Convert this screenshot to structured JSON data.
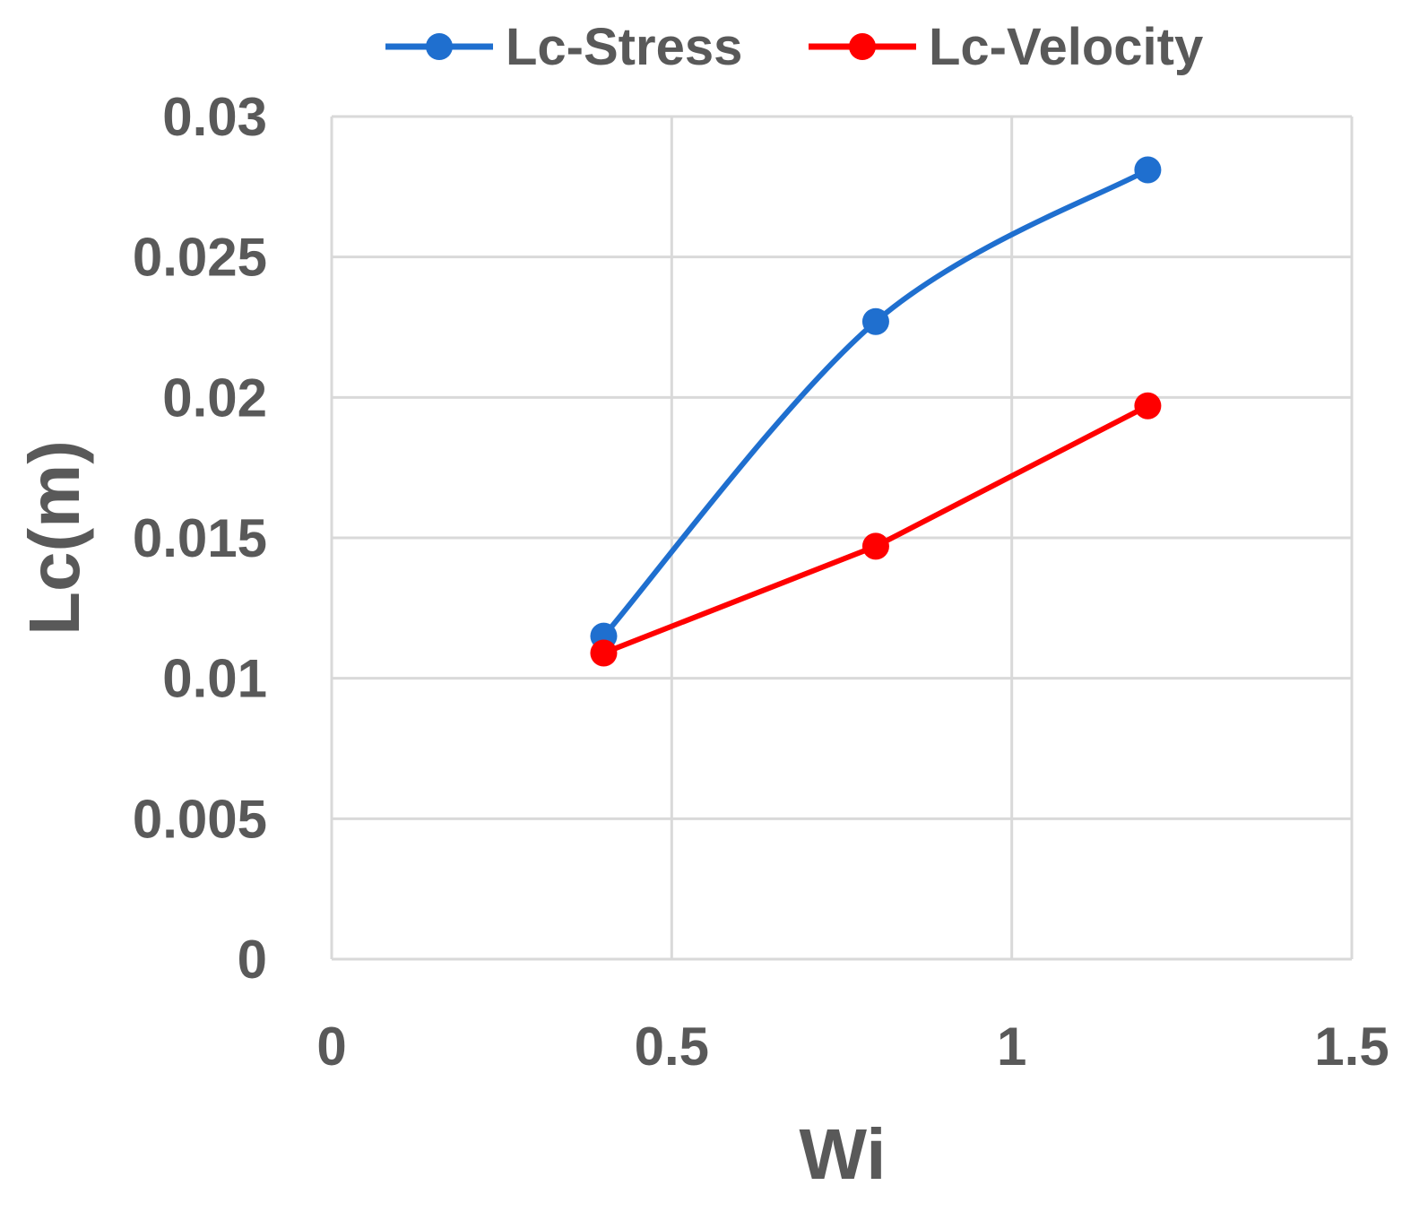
{
  "chart_data": {
    "type": "line",
    "title": "",
    "xlabel": "Wi",
    "ylabel": "Lc(m)",
    "xlim": [
      0,
      1.5
    ],
    "ylim": [
      0,
      0.03
    ],
    "xticks": [
      0,
      0.5,
      1,
      1.5
    ],
    "xtick_labels": [
      "0",
      "0.5",
      "1",
      "1.5"
    ],
    "yticks": [
      0,
      0.005,
      0.01,
      0.015,
      0.02,
      0.025,
      0.03
    ],
    "ytick_labels": [
      "0",
      "0.005",
      "0.01",
      "0.015",
      "0.02",
      "0.025",
      "0.03"
    ],
    "grid": true,
    "legend_position": "top",
    "series": [
      {
        "name": "Lc-Stress",
        "color": "#1f6fcf",
        "smooth": true,
        "x": [
          0.4,
          0.8,
          1.2
        ],
        "y": [
          0.0115,
          0.0227,
          0.0281
        ]
      },
      {
        "name": "Lc-Velocity",
        "color": "#ff0000",
        "smooth": false,
        "x": [
          0.4,
          0.8,
          1.2
        ],
        "y": [
          0.0109,
          0.0147,
          0.0197
        ]
      }
    ]
  }
}
